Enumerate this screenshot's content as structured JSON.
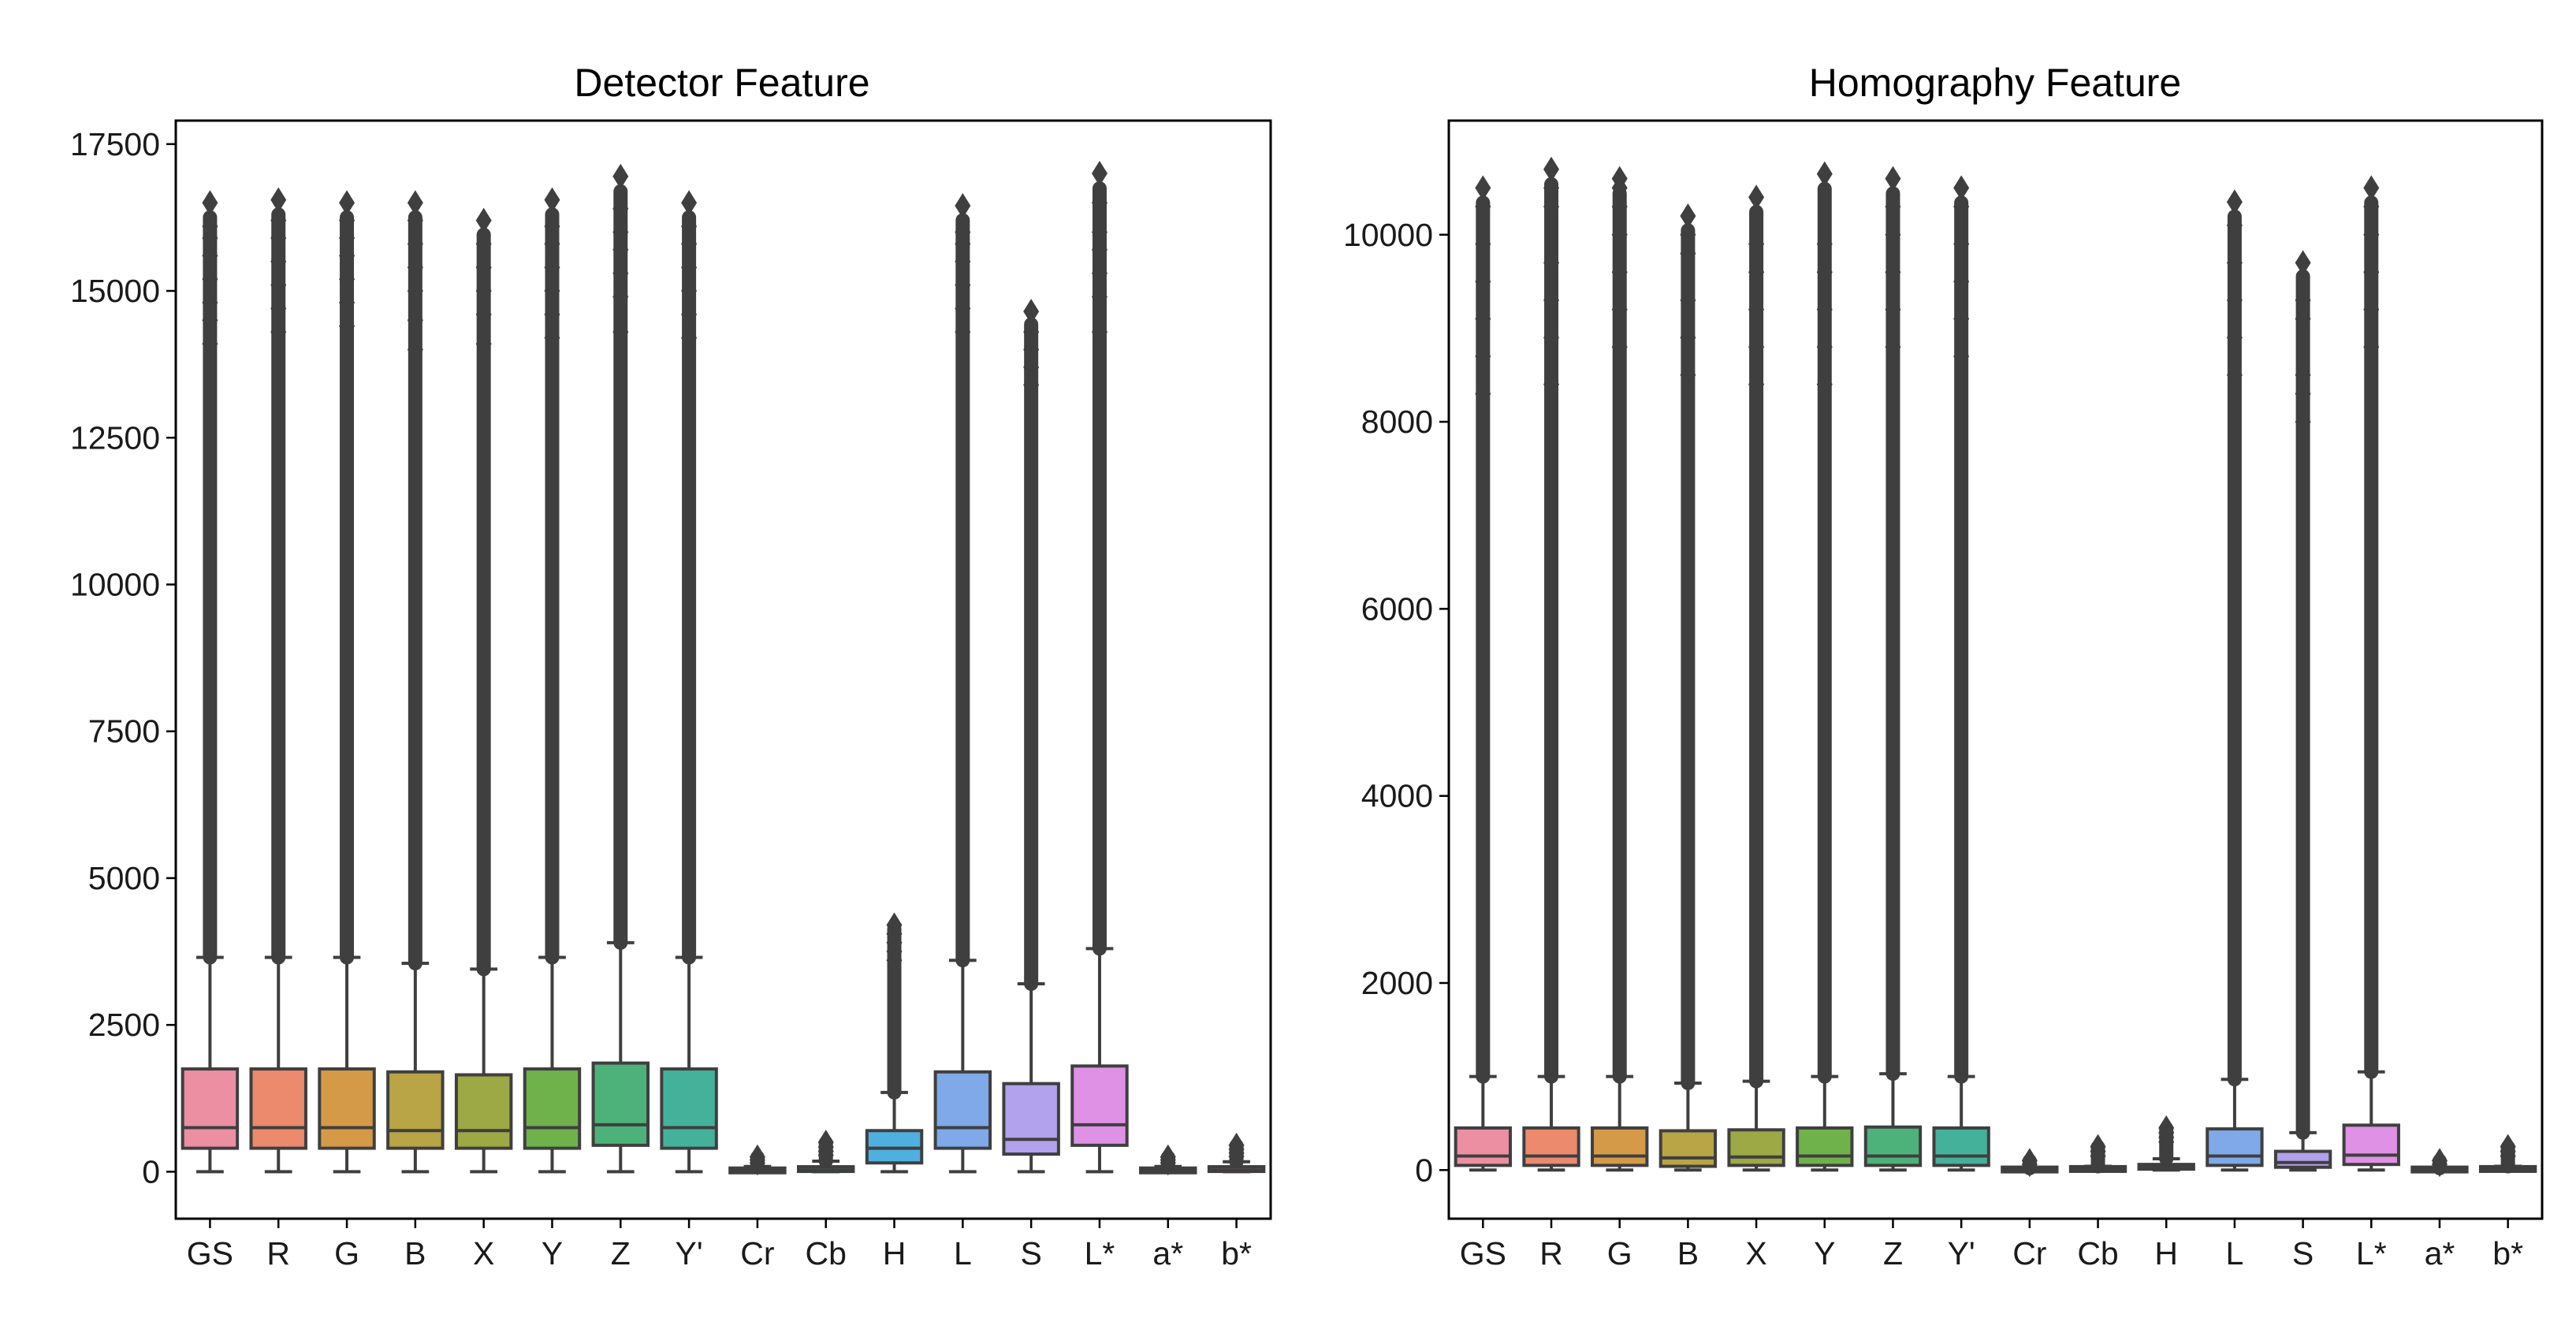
{
  "chart_data": [
    {
      "type": "box",
      "title": "Detector Feature",
      "xlabel": "",
      "ylabel": "",
      "grid": false,
      "ylim": [
        -800,
        17900
      ],
      "yticks": [
        0,
        2500,
        5000,
        7500,
        10000,
        12500,
        15000,
        17500
      ],
      "ytick_labels": [
        "0",
        "2500",
        "5000",
        "7500",
        "10000",
        "12500",
        "15000",
        "17500"
      ],
      "categories": [
        "GS",
        "R",
        "G",
        "B",
        "X",
        "Y",
        "Z",
        "Y'",
        "Cr",
        "Cb",
        "H",
        "L",
        "S",
        "L*",
        "a*",
        "b*"
      ],
      "boxes": [
        {
          "category": "GS",
          "whislo": 0,
          "q1": 400,
          "median": 750,
          "q3": 1750,
          "whishi": 3650,
          "outlier_max": 16500,
          "top_outliers": [
            16500,
            16100,
            15900,
            15600,
            15200,
            14800,
            14500,
            14100
          ],
          "color": "#ec8fa3"
        },
        {
          "category": "R",
          "whislo": 0,
          "q1": 400,
          "median": 750,
          "q3": 1750,
          "whishi": 3650,
          "outlier_max": 16550,
          "top_outliers": [
            16550,
            16200,
            15900,
            15500,
            15100,
            14700,
            14300
          ],
          "color": "#eb8a6d"
        },
        {
          "category": "G",
          "whislo": 0,
          "q1": 400,
          "median": 750,
          "q3": 1750,
          "whishi": 3650,
          "outlier_max": 16500,
          "top_outliers": [
            16500,
            16200,
            15900,
            15600,
            15200,
            14800,
            14400
          ],
          "color": "#d59a48"
        },
        {
          "category": "B",
          "whislo": 0,
          "q1": 400,
          "median": 700,
          "q3": 1700,
          "whishi": 3550,
          "outlier_max": 16500,
          "top_outliers": [
            16500,
            16200,
            15800,
            15400,
            15000,
            14500,
            14000
          ],
          "color": "#b9a446"
        },
        {
          "category": "X",
          "whislo": 0,
          "q1": 400,
          "median": 700,
          "q3": 1650,
          "whishi": 3450,
          "outlier_max": 16200,
          "top_outliers": [
            16200,
            15800,
            15400,
            15000,
            14600,
            14100
          ],
          "color": "#9ca944"
        },
        {
          "category": "Y",
          "whislo": 0,
          "q1": 400,
          "median": 750,
          "q3": 1750,
          "whishi": 3650,
          "outlier_max": 16550,
          "top_outliers": [
            16550,
            16100,
            15800,
            15400,
            15000,
            14600,
            14200
          ],
          "color": "#6fb14a"
        },
        {
          "category": "Z",
          "whislo": 0,
          "q1": 450,
          "median": 800,
          "q3": 1850,
          "whishi": 3900,
          "outlier_max": 16950,
          "top_outliers": [
            16950,
            16400,
            16000,
            15700,
            15300,
            14900,
            14300
          ],
          "color": "#4db279"
        },
        {
          "category": "Y'",
          "whislo": 0,
          "q1": 400,
          "median": 750,
          "q3": 1750,
          "whishi": 3650,
          "outlier_max": 16500,
          "top_outliers": [
            16500,
            16100,
            15800,
            15400,
            15000,
            14600,
            14200
          ],
          "color": "#44b29a"
        },
        {
          "category": "Cr",
          "whislo": 0,
          "q1": 5,
          "median": 15,
          "q3": 40,
          "whishi": 90,
          "outlier_max": 250,
          "top_outliers": [
            250,
            200,
            150
          ],
          "color": "#45b3b0"
        },
        {
          "category": "Cb",
          "whislo": 0,
          "q1": 10,
          "median": 30,
          "q3": 80,
          "whishi": 180,
          "outlier_max": 500,
          "top_outliers": [
            500,
            420,
            350,
            280
          ],
          "color": "#49b1c8"
        },
        {
          "category": "H",
          "whislo": 0,
          "q1": 150,
          "median": 400,
          "q3": 700,
          "whishi": 1350,
          "outlier_max": 4200,
          "top_outliers": [
            4200,
            4050,
            3900,
            3750,
            3600
          ],
          "color": "#4fb0e0"
        },
        {
          "category": "L",
          "whislo": 0,
          "q1": 400,
          "median": 750,
          "q3": 1700,
          "whishi": 3600,
          "outlier_max": 16450,
          "top_outliers": [
            16450,
            16000,
            15800,
            15500,
            15100,
            14700,
            14300
          ],
          "color": "#7fa9e8"
        },
        {
          "category": "S",
          "whislo": 0,
          "q1": 300,
          "median": 550,
          "q3": 1500,
          "whishi": 3200,
          "outlier_max": 14650,
          "top_outliers": [
            14650,
            14300,
            14000,
            13700,
            13400
          ],
          "color": "#b2a1ec"
        },
        {
          "category": "L*",
          "whislo": 0,
          "q1": 450,
          "median": 800,
          "q3": 1800,
          "whishi": 3800,
          "outlier_max": 17000,
          "top_outliers": [
            17000,
            16500,
            16000,
            15700,
            15300,
            14900,
            14300
          ],
          "color": "#de91e5"
        },
        {
          "category": "a*",
          "whislo": 0,
          "q1": 5,
          "median": 15,
          "q3": 40,
          "whishi": 90,
          "outlier_max": 250,
          "top_outliers": [
            250,
            200,
            150
          ],
          "color": "#e894c9"
        },
        {
          "category": "b*",
          "whislo": 0,
          "q1": 10,
          "median": 30,
          "q3": 80,
          "whishi": 170,
          "outlier_max": 450,
          "top_outliers": [
            450,
            380,
            320,
            260
          ],
          "color": "#ec95b3"
        }
      ]
    },
    {
      "type": "box",
      "title": "Homography Feature",
      "xlabel": "",
      "ylabel": "",
      "grid": false,
      "ylim": [
        -520,
        11220
      ],
      "yticks": [
        0,
        2000,
        4000,
        6000,
        8000,
        10000
      ],
      "ytick_labels": [
        "0",
        "2000",
        "4000",
        "6000",
        "8000",
        "10000"
      ],
      "categories": [
        "GS",
        "R",
        "G",
        "B",
        "X",
        "Y",
        "Z",
        "Y'",
        "Cr",
        "Cb",
        "H",
        "L",
        "S",
        "L*",
        "a*",
        "b*"
      ],
      "boxes": [
        {
          "category": "GS",
          "whislo": 0,
          "q1": 50,
          "median": 150,
          "q3": 450,
          "whishi": 1000,
          "outlier_max": 10500,
          "top_outliers": [
            10500,
            10300,
            9900,
            9500,
            9100,
            8700,
            8300
          ],
          "color": "#ec8fa3"
        },
        {
          "category": "R",
          "whislo": 0,
          "q1": 50,
          "median": 150,
          "q3": 450,
          "whishi": 1000,
          "outlier_max": 10700,
          "top_outliers": [
            10700,
            10500,
            10300,
            9700,
            9300,
            8900,
            8400
          ],
          "color": "#eb8a6d"
        },
        {
          "category": "G",
          "whislo": 0,
          "q1": 50,
          "median": 150,
          "q3": 450,
          "whishi": 1000,
          "outlier_max": 10600,
          "top_outliers": [
            10600,
            10500,
            10300,
            10000,
            9600,
            9200,
            8800
          ],
          "color": "#d59a48"
        },
        {
          "category": "B",
          "whislo": 0,
          "q1": 40,
          "median": 130,
          "q3": 420,
          "whishi": 930,
          "outlier_max": 10200,
          "top_outliers": [
            10200,
            10000,
            9800,
            9300,
            8900,
            8500
          ],
          "color": "#b9a446"
        },
        {
          "category": "X",
          "whislo": 0,
          "q1": 50,
          "median": 140,
          "q3": 430,
          "whishi": 950,
          "outlier_max": 10400,
          "top_outliers": [
            10400,
            9900,
            9600,
            9200,
            8800,
            8400
          ],
          "color": "#9ca944"
        },
        {
          "category": "Y",
          "whislo": 0,
          "q1": 50,
          "median": 150,
          "q3": 450,
          "whishi": 1000,
          "outlier_max": 10650,
          "top_outliers": [
            10650,
            9900,
            9600,
            9200,
            8800,
            8400
          ],
          "color": "#6fb14a"
        },
        {
          "category": "Z",
          "whislo": 0,
          "q1": 50,
          "median": 150,
          "q3": 460,
          "whishi": 1030,
          "outlier_max": 10600,
          "top_outliers": [
            10600,
            10300,
            10000,
            9600,
            9200,
            8800
          ],
          "color": "#4db279"
        },
        {
          "category": "Y'",
          "whislo": 0,
          "q1": 50,
          "median": 150,
          "q3": 450,
          "whishi": 1000,
          "outlier_max": 10500,
          "top_outliers": [
            10500,
            10300,
            9900,
            9500,
            9100,
            8700
          ],
          "color": "#44b29a"
        },
        {
          "category": "Cr",
          "whislo": 0,
          "q1": 2,
          "median": 5,
          "q3": 10,
          "whishi": 20,
          "outlier_max": 100,
          "top_outliers": [
            100,
            60
          ],
          "color": "#45b3b0"
        },
        {
          "category": "Cb",
          "whislo": 0,
          "q1": 3,
          "median": 8,
          "q3": 20,
          "whishi": 40,
          "outlier_max": 250,
          "top_outliers": [
            250,
            200,
            150
          ],
          "color": "#49b1c8"
        },
        {
          "category": "H",
          "whislo": 0,
          "q1": 10,
          "median": 30,
          "q3": 60,
          "whishi": 120,
          "outlier_max": 450,
          "top_outliers": [
            450,
            400,
            350,
            300
          ],
          "color": "#4fb0e0"
        },
        {
          "category": "L",
          "whislo": 0,
          "q1": 50,
          "median": 150,
          "q3": 440,
          "whishi": 970,
          "outlier_max": 10350,
          "top_outliers": [
            10350,
            10100,
            9700,
            9300,
            8900,
            8500
          ],
          "color": "#7fa9e8"
        },
        {
          "category": "S",
          "whislo": 0,
          "q1": 30,
          "median": 80,
          "q3": 200,
          "whishi": 400,
          "outlier_max": 9700,
          "top_outliers": [
            9700,
            9300,
            9100,
            8500,
            8300,
            8000
          ],
          "color": "#b2a1ec"
        },
        {
          "category": "L*",
          "whislo": 0,
          "q1": 60,
          "median": 160,
          "q3": 480,
          "whishi": 1050,
          "outlier_max": 10500,
          "top_outliers": [
            10500,
            10300,
            10000,
            9600,
            9200,
            8800
          ],
          "color": "#de91e5"
        },
        {
          "category": "a*",
          "whislo": 0,
          "q1": 2,
          "median": 5,
          "q3": 10,
          "whishi": 20,
          "outlier_max": 100,
          "top_outliers": [
            100,
            60
          ],
          "color": "#e894c9"
        },
        {
          "category": "b*",
          "whislo": 0,
          "q1": 3,
          "median": 8,
          "q3": 20,
          "whishi": 40,
          "outlier_max": 250,
          "top_outliers": [
            250,
            200,
            150
          ],
          "color": "#ec95b3"
        }
      ]
    }
  ]
}
